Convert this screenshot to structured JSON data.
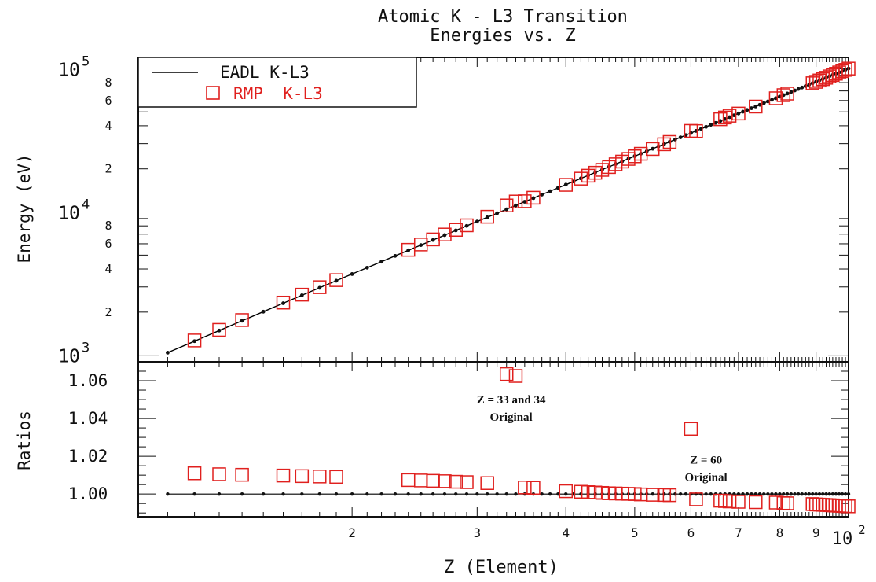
{
  "chart_data": [
    {
      "type": "line",
      "panel": "upper",
      "title_lines": [
        "Atomic K - L3 Transition",
        "Energies vs. Z"
      ],
      "xlabel": "Z (Element)",
      "ylabel": "Energy (eV)",
      "xscale": "log",
      "yscale": "log",
      "xlim": [
        10,
        100
      ],
      "ylim": [
        900,
        120000
      ],
      "y_tick_labels": [
        {
          "value": 1000,
          "base": "10",
          "exp": "3"
        },
        {
          "value": 10000,
          "base": "10",
          "exp": "4"
        },
        {
          "value": 100000,
          "base": "10",
          "exp": "5"
        }
      ],
      "y_minor_labels": [
        {
          "value": 2000,
          "label": "2"
        },
        {
          "value": 4000,
          "label": "4"
        },
        {
          "value": 6000,
          "label": "6"
        },
        {
          "value": 8000,
          "label": "8"
        },
        {
          "value": 20000,
          "label": "2"
        },
        {
          "value": 40000,
          "label": "4"
        },
        {
          "value": 60000,
          "label": "6"
        },
        {
          "value": 80000,
          "label": "8"
        }
      ],
      "legend": {
        "placement": "top-left",
        "entries": [
          {
            "label": "EADL K-L3",
            "color": "#000000",
            "marker": "line"
          },
          {
            "label": "RMP  K-L3",
            "color": "#e0201e",
            "marker": "open-square"
          }
        ]
      },
      "series": [
        {
          "name": "EADL K-L3",
          "color": "#000000",
          "x": [
            11,
            12,
            13,
            14,
            15,
            16,
            17,
            18,
            19,
            20,
            21,
            22,
            23,
            24,
            25,
            26,
            27,
            28,
            29,
            30,
            31,
            32,
            33,
            34,
            35,
            36,
            37,
            38,
            39,
            40,
            41,
            42,
            43,
            44,
            45,
            46,
            47,
            48,
            49,
            50,
            51,
            52,
            53,
            54,
            55,
            56,
            57,
            58,
            59,
            60,
            61,
            62,
            63,
            64,
            65,
            66,
            67,
            68,
            69,
            70,
            71,
            72,
            73,
            74,
            75,
            76,
            77,
            78,
            79,
            80,
            81,
            82,
            83,
            84,
            85,
            86,
            87,
            88,
            89,
            90,
            91,
            92,
            93,
            94,
            95,
            96,
            97,
            98,
            99,
            100
          ],
          "y": [
            1042,
            1254,
            1487,
            1740,
            2014,
            2308,
            2622,
            2957,
            3312,
            3688,
            4085,
            4502,
            4939,
            5398,
            5876,
            6375,
            6895,
            7436,
            7997,
            8578,
            9180,
            9803,
            10446,
            11110,
            11794,
            12499,
            13225,
            13971,
            14738,
            15525,
            16333,
            17162,
            18011,
            18880,
            19771,
            20681,
            21613,
            22565,
            23537,
            24531,
            25544,
            26579,
            27634,
            28709,
            29805,
            30922,
            32059,
            33217,
            34395,
            35594,
            36814,
            38054,
            39315,
            40596,
            41898,
            43220,
            44563,
            45927,
            47311,
            48716,
            50141,
            51587,
            53053,
            54540,
            56047,
            57575,
            59124,
            60693,
            62283,
            63893,
            65524,
            67175,
            68847,
            70540,
            72253,
            73987,
            75741,
            77516,
            79311,
            81127,
            82963,
            84820,
            86698,
            88596,
            90515,
            92454,
            94414,
            96394,
            98395,
            100416
          ]
        },
        {
          "name": "RMP  K-L3",
          "color": "#e0201e",
          "x": [
            12,
            13,
            14,
            16,
            17,
            18,
            19,
            24,
            25,
            26,
            27,
            28,
            29,
            31,
            33,
            34,
            35,
            36,
            40,
            42,
            43,
            44,
            45,
            46,
            47,
            48,
            49,
            50,
            51,
            53,
            55,
            56,
            60,
            61,
            66,
            67,
            68,
            70,
            74,
            79,
            81,
            82,
            89,
            90,
            91,
            92,
            93,
            94,
            95,
            96,
            97,
            98,
            99,
            100
          ],
          "y": [
            1268,
            1503,
            1760,
            2331,
            2648,
            2986,
            3345,
            5444,
            5930,
            6434,
            6960,
            7505,
            8071,
            9262,
            11110,
            11836,
            11885,
            12578,
            15466,
            17084,
            17925,
            18790,
            19684,
            20597,
            21532,
            22491,
            23470,
            24474,
            25494,
            27541,
            29708,
            30826,
            36819,
            36713,
            44408,
            45684,
            46991,
            48682,
            54460,
            62197,
            65428,
            67066,
            79231,
            81015,
            82853,
            84684,
            86565,
            88467,
            90388,
            92328,
            94288,
            96263,
            98267,
            100284
          ]
        }
      ]
    },
    {
      "type": "scatter",
      "panel": "lower",
      "ylabel": "Ratios",
      "xlabel": "Z (Element)",
      "xscale": "log",
      "xlim": [
        10,
        100
      ],
      "ylim": [
        0.988,
        1.07
      ],
      "y_tick_labels": [
        {
          "value": 1.0,
          "label": "1.00"
        },
        {
          "value": 1.02,
          "label": "1.02"
        },
        {
          "value": 1.04,
          "label": "1.04"
        },
        {
          "value": 1.06,
          "label": "1.06"
        }
      ],
      "x_tick_labels": [
        {
          "value": 20,
          "label": "2"
        },
        {
          "value": 30,
          "label": "3"
        },
        {
          "value": 40,
          "label": "4"
        },
        {
          "value": 50,
          "label": "5"
        },
        {
          "value": 60,
          "label": "6"
        },
        {
          "value": 70,
          "label": "7"
        },
        {
          "value": 80,
          "label": "8"
        },
        {
          "value": 90,
          "label": "9"
        },
        {
          "value": 100,
          "base": "10",
          "exp": "2"
        }
      ],
      "annotations": [
        {
          "text_lines": [
            "Z = 33 and 34",
            "Original"
          ],
          "x": 33.5,
          "y": 1.048
        },
        {
          "text_lines": [
            "Z = 60",
            "Original"
          ],
          "x": 63,
          "y": 1.016
        }
      ],
      "series": [
        {
          "name": "EADL K-L3",
          "color": "#000000",
          "x": [
            11,
            12,
            13,
            14,
            15,
            16,
            17,
            18,
            19,
            20,
            21,
            22,
            23,
            24,
            25,
            26,
            27,
            28,
            29,
            30,
            31,
            32,
            33,
            34,
            35,
            36,
            37,
            38,
            39,
            40,
            41,
            42,
            43,
            44,
            45,
            46,
            47,
            48,
            49,
            50,
            51,
            52,
            53,
            54,
            55,
            56,
            57,
            58,
            59,
            60,
            61,
            62,
            63,
            64,
            65,
            66,
            67,
            68,
            69,
            70,
            71,
            72,
            73,
            74,
            75,
            76,
            77,
            78,
            79,
            80,
            81,
            82,
            83,
            84,
            85,
            86,
            87,
            88,
            89,
            90,
            91,
            92,
            93,
            94,
            95,
            96,
            97,
            98,
            99,
            100
          ],
          "y": [
            1,
            1,
            1,
            1,
            1,
            1,
            1,
            1,
            1,
            1,
            1,
            1,
            1,
            1,
            1,
            1,
            1,
            1,
            1,
            1,
            1,
            1,
            1,
            1,
            1,
            1,
            1,
            1,
            1,
            1,
            1,
            1,
            1,
            1,
            1,
            1,
            1,
            1,
            1,
            1,
            1,
            1,
            1,
            1,
            1,
            1,
            1,
            1,
            1,
            1,
            1,
            1,
            1,
            1,
            1,
            1,
            1,
            1,
            1,
            1,
            1,
            1,
            1,
            1,
            1,
            1,
            1,
            1,
            1,
            1,
            1,
            1,
            1,
            1,
            1,
            1,
            1,
            1,
            1,
            1,
            1,
            1,
            1,
            1,
            1,
            1,
            1,
            1,
            1,
            1
          ]
        },
        {
          "name": "RMP  K-L3",
          "color": "#e0201e",
          "x": [
            12,
            13,
            14,
            16,
            17,
            18,
            19,
            24,
            25,
            26,
            27,
            28,
            29,
            31,
            33,
            34,
            35,
            36,
            40,
            42,
            43,
            44,
            45,
            46,
            47,
            48,
            49,
            50,
            51,
            53,
            55,
            56,
            60,
            61,
            66,
            67,
            68,
            70,
            74,
            79,
            81,
            82,
            89,
            90,
            91,
            92,
            93,
            94,
            95,
            96,
            97,
            98,
            99,
            100
          ],
          "y": [
            1.011,
            1.0105,
            1.0102,
            1.0098,
            1.0095,
            1.0093,
            1.0091,
            1.0074,
            1.0072,
            1.007,
            1.0068,
            1.0065,
            1.0063,
            1.0058,
            1.0635,
            1.0625,
            1.0035,
            1.0033,
            1.0015,
            1.0012,
            1.001,
            1.0008,
            1.0006,
            1.0004,
            1.0003,
            1.0002,
            1.0001,
            1.0,
            0.9998,
            0.9996,
            0.9995,
            0.9994,
            1.0345,
            0.9972,
            0.9965,
            0.9963,
            0.9961,
            0.9959,
            0.9957,
            0.9955,
            0.9952,
            0.9951,
            0.9947,
            0.9945,
            0.9944,
            0.9943,
            0.9942,
            0.9941,
            0.994,
            0.9939,
            0.9938,
            0.9937,
            0.9936,
            0.9935
          ]
        }
      ]
    }
  ]
}
